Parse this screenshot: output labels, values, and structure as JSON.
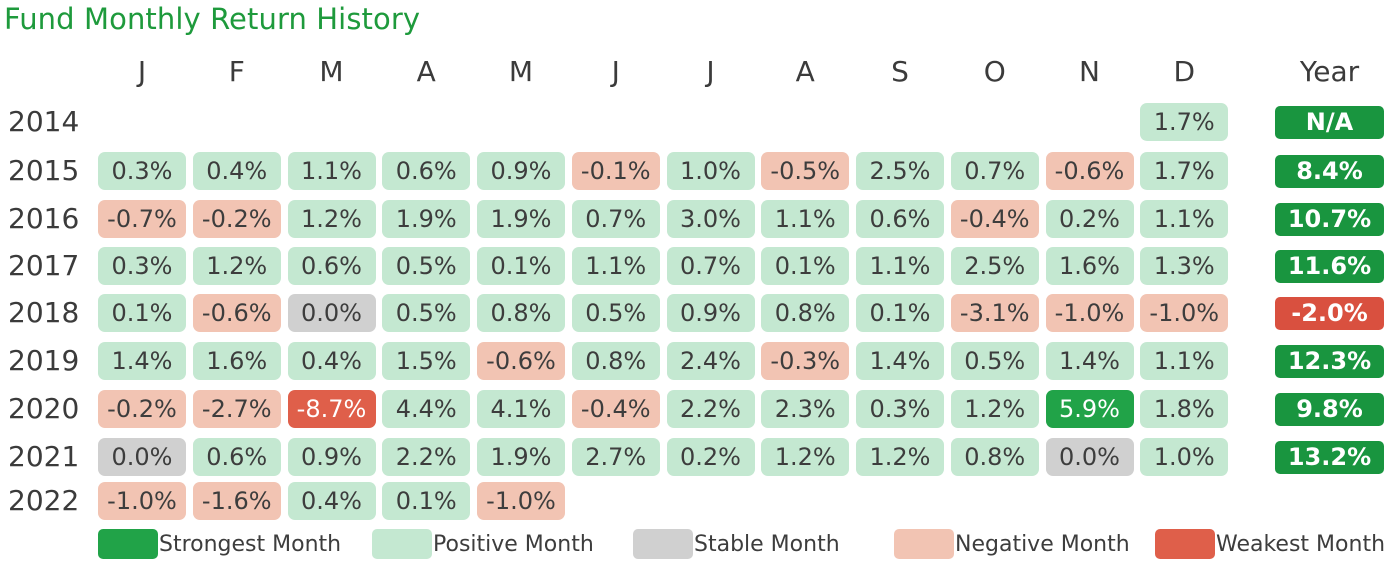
{
  "title": "Fund Monthly Return History",
  "chart_data": {
    "type": "heatmap",
    "title": "Fund Monthly Return History",
    "columns": [
      "J",
      "F",
      "M",
      "A",
      "M",
      "J",
      "J",
      "A",
      "S",
      "O",
      "N",
      "D"
    ],
    "annual_label": "Year",
    "unit": "%",
    "rows": [
      {
        "year": "2014",
        "months": [
          null,
          null,
          null,
          null,
          null,
          null,
          null,
          null,
          null,
          null,
          null,
          1.7
        ],
        "annual": "N/A"
      },
      {
        "year": "2015",
        "months": [
          0.3,
          0.4,
          1.1,
          0.6,
          0.9,
          -0.1,
          1.0,
          -0.5,
          2.5,
          0.7,
          -0.6,
          1.7
        ],
        "annual": 8.4
      },
      {
        "year": "2016",
        "months": [
          -0.7,
          -0.2,
          1.2,
          1.9,
          1.9,
          0.7,
          3.0,
          1.1,
          0.6,
          -0.4,
          0.2,
          1.1
        ],
        "annual": 10.7
      },
      {
        "year": "2017",
        "months": [
          0.3,
          1.2,
          0.6,
          0.5,
          0.1,
          1.1,
          0.7,
          0.1,
          1.1,
          2.5,
          1.6,
          1.3
        ],
        "annual": 11.6
      },
      {
        "year": "2018",
        "months": [
          0.1,
          -0.6,
          0.0,
          0.5,
          0.8,
          0.5,
          0.9,
          0.8,
          0.1,
          -3.1,
          -1.0,
          -1.0
        ],
        "annual": -2.0
      },
      {
        "year": "2019",
        "months": [
          1.4,
          1.6,
          0.4,
          1.5,
          -0.6,
          0.8,
          2.4,
          -0.3,
          1.4,
          0.5,
          1.4,
          1.1
        ],
        "annual": 12.3
      },
      {
        "year": "2020",
        "months": [
          -0.2,
          -2.7,
          -8.7,
          4.4,
          4.1,
          -0.4,
          2.2,
          2.3,
          0.3,
          1.2,
          5.9,
          1.8
        ],
        "annual": 9.8
      },
      {
        "year": "2021",
        "months": [
          0.0,
          0.6,
          0.9,
          2.2,
          1.9,
          2.7,
          0.2,
          1.2,
          1.2,
          0.8,
          0.0,
          1.0
        ],
        "annual": 13.2
      },
      {
        "year": "2022",
        "months": [
          -1.0,
          -1.6,
          0.4,
          0.1,
          -1.0,
          null,
          null,
          null,
          null,
          null,
          null,
          null
        ],
        "annual": null
      }
    ],
    "category_colors": {
      "strongest": "#21a348",
      "positive": "#c4e8d1",
      "stable": "#d0d0d0",
      "negative": "#f2c4b3",
      "weakest": "#df5f4a"
    },
    "annual_colors": {
      "positive": "#19953f",
      "negative": "#d9503f"
    },
    "legend": [
      {
        "key": "strongest",
        "label": "Strongest Month"
      },
      {
        "key": "positive",
        "label": "Positive Month"
      },
      {
        "key": "stable",
        "label": "Stable Month"
      },
      {
        "key": "negative",
        "label": "Negative Month"
      },
      {
        "key": "weakest",
        "label": "Weakest Month"
      }
    ]
  }
}
